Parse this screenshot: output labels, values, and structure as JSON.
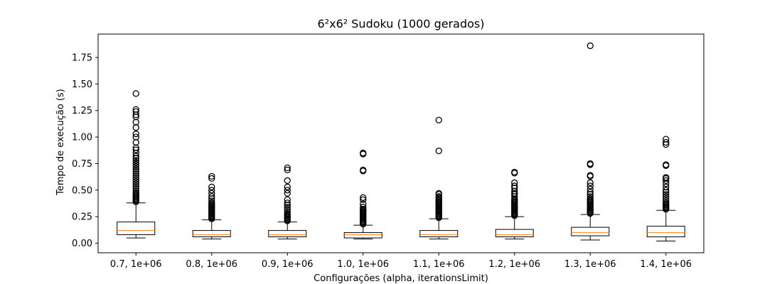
{
  "chart_data": {
    "type": "boxplot",
    "title": "6²x6² Sudoku (1000 gerados)",
    "xlabel": "Configurações (alpha, iterationsLimit)",
    "ylabel": "Tempo de execução (s)",
    "ylim": [
      -0.09,
      1.97
    ],
    "yticks": [
      0.0,
      0.25,
      0.5,
      0.75,
      1.0,
      1.25,
      1.5,
      1.75
    ],
    "ytick_labels": [
      "0.00",
      "0.25",
      "0.50",
      "0.75",
      "1.00",
      "1.25",
      "1.50",
      "1.75"
    ],
    "grid": false,
    "colors": {
      "box": "#000000",
      "median": "#ff7f0e",
      "outlier": "#000000"
    },
    "categories": [
      "0.7, 1e+06",
      "0.8, 1e+06",
      "0.9, 1e+06",
      "1.0, 1e+06",
      "1.1, 1e+06",
      "1.2, 1e+06",
      "1.3, 1e+06",
      "1.4, 1e+06"
    ],
    "boxes": [
      {
        "whislo": 0.05,
        "q1": 0.08,
        "med": 0.12,
        "q3": 0.2,
        "whishi": 0.38,
        "fliers": [
          0.39,
          0.4,
          0.41,
          0.42,
          0.43,
          0.44,
          0.45,
          0.46,
          0.47,
          0.48,
          0.5,
          0.52,
          0.54,
          0.56,
          0.58,
          0.6,
          0.62,
          0.64,
          0.66,
          0.68,
          0.7,
          0.72,
          0.74,
          0.76,
          0.78,
          0.8,
          0.82,
          0.85,
          0.88,
          0.9,
          0.95,
          1.0,
          1.03,
          1.09,
          1.14,
          1.19,
          1.21,
          1.24,
          1.26,
          1.41
        ]
      },
      {
        "whislo": 0.04,
        "q1": 0.06,
        "med": 0.08,
        "q3": 0.12,
        "whishi": 0.22,
        "fliers": [
          0.23,
          0.24,
          0.25,
          0.26,
          0.27,
          0.28,
          0.29,
          0.3,
          0.31,
          0.32,
          0.33,
          0.34,
          0.35,
          0.36,
          0.37,
          0.38,
          0.4,
          0.42,
          0.44,
          0.47,
          0.5,
          0.53,
          0.61,
          0.63
        ]
      },
      {
        "whislo": 0.04,
        "q1": 0.06,
        "med": 0.08,
        "q3": 0.12,
        "whishi": 0.2,
        "fliers": [
          0.21,
          0.22,
          0.23,
          0.24,
          0.25,
          0.26,
          0.27,
          0.28,
          0.3,
          0.32,
          0.34,
          0.36,
          0.38,
          0.41,
          0.47,
          0.5,
          0.53,
          0.59,
          0.69,
          0.71
        ]
      },
      {
        "whislo": 0.04,
        "q1": 0.05,
        "med": 0.08,
        "q3": 0.1,
        "whishi": 0.17,
        "fliers": [
          0.18,
          0.19,
          0.2,
          0.21,
          0.22,
          0.23,
          0.24,
          0.25,
          0.26,
          0.27,
          0.28,
          0.29,
          0.3,
          0.31,
          0.32,
          0.34,
          0.37,
          0.41,
          0.43,
          0.68,
          0.69,
          0.84,
          0.85
        ]
      },
      {
        "whislo": 0.04,
        "q1": 0.06,
        "med": 0.08,
        "q3": 0.12,
        "whishi": 0.23,
        "fliers": [
          0.24,
          0.25,
          0.26,
          0.27,
          0.28,
          0.29,
          0.3,
          0.31,
          0.32,
          0.33,
          0.34,
          0.35,
          0.36,
          0.37,
          0.38,
          0.39,
          0.4,
          0.41,
          0.42,
          0.43,
          0.44,
          0.46,
          0.47,
          0.87,
          1.16
        ]
      },
      {
        "whislo": 0.04,
        "q1": 0.06,
        "med": 0.08,
        "q3": 0.13,
        "whishi": 0.25,
        "fliers": [
          0.26,
          0.27,
          0.28,
          0.29,
          0.3,
          0.31,
          0.32,
          0.33,
          0.34,
          0.35,
          0.36,
          0.37,
          0.38,
          0.39,
          0.4,
          0.41,
          0.42,
          0.44,
          0.46,
          0.47,
          0.49,
          0.52,
          0.54,
          0.57,
          0.66,
          0.67
        ]
      },
      {
        "whislo": 0.03,
        "q1": 0.07,
        "med": 0.1,
        "q3": 0.15,
        "whishi": 0.27,
        "fliers": [
          0.28,
          0.29,
          0.3,
          0.31,
          0.32,
          0.33,
          0.34,
          0.35,
          0.36,
          0.37,
          0.38,
          0.39,
          0.4,
          0.41,
          0.42,
          0.44,
          0.46,
          0.48,
          0.51,
          0.54,
          0.57,
          0.63,
          0.64,
          0.74,
          0.75,
          1.86
        ]
      },
      {
        "whislo": 0.02,
        "q1": 0.06,
        "med": 0.1,
        "q3": 0.16,
        "whishi": 0.31,
        "fliers": [
          0.32,
          0.33,
          0.34,
          0.35,
          0.36,
          0.37,
          0.38,
          0.4,
          0.42,
          0.44,
          0.46,
          0.48,
          0.5,
          0.53,
          0.56,
          0.59,
          0.61,
          0.62,
          0.73,
          0.74,
          0.93,
          0.95,
          0.98
        ]
      }
    ]
  }
}
